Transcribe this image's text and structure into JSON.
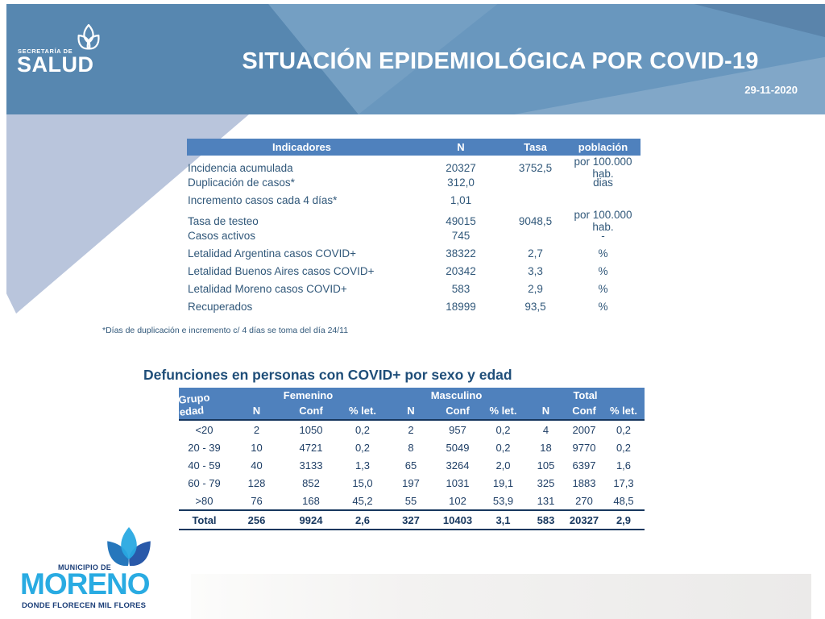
{
  "header": {
    "logo_small": "SECRETARÍA DE",
    "logo_big": "SALUD",
    "title": "SITUACIÓN EPIDEMIOLÓGICA POR COVID-19",
    "date": "29-11-2020"
  },
  "indicators_table": {
    "headers": {
      "indicator": "Indicadores",
      "n": "N",
      "tasa": "Tasa",
      "poblacion": "población"
    },
    "rows": [
      {
        "indicator": "Incidencia acumulada",
        "n": "20327",
        "tasa": "3752,5",
        "poblacion": "por 100.000 hab."
      },
      {
        "indicator": "Duplicación de casos*",
        "n": "312,0",
        "tasa": "",
        "poblacion": "dias"
      },
      {
        "indicator": "Incremento casos cada 4 días*",
        "n": "1,01",
        "tasa": "",
        "poblacion": ""
      },
      {
        "indicator": "Tasa de testeo",
        "n": "49015",
        "tasa": "9048,5",
        "poblacion": "por 100.000 hab."
      },
      {
        "indicator": "Casos activos",
        "n": "745",
        "tasa": "",
        "poblacion": "-"
      },
      {
        "indicator": "Letalidad Argentina casos COVID+",
        "n": "38322",
        "tasa": "2,7",
        "poblacion": "%"
      },
      {
        "indicator": "Letalidad Buenos Aires casos COVID+",
        "n": "20342",
        "tasa": "3,3",
        "poblacion": "%"
      },
      {
        "indicator": "Letalidad Moreno casos COVID+",
        "n": "583",
        "tasa": "2,9",
        "poblacion": "%"
      },
      {
        "indicator": "Recuperados",
        "n": "18999",
        "tasa": "93,5",
        "poblacion": "%"
      }
    ],
    "footnote": "*Días de duplicación e incremento c/ 4 días se toma del día 24/11"
  },
  "deaths_table": {
    "title": "Defunciones en personas con COVID+ por sexo y edad",
    "col_group_label": "Grupo edad",
    "groups": [
      "Femenino",
      "Masculino",
      "Total"
    ],
    "subheaders": [
      "N",
      "Conf",
      "% let."
    ],
    "rows": [
      [
        "<20",
        "2",
        "1050",
        "0,2",
        "2",
        "957",
        "0,2",
        "4",
        "2007",
        "0,2"
      ],
      [
        "20 - 39",
        "10",
        "4721",
        "0,2",
        "8",
        "5049",
        "0,2",
        "18",
        "9770",
        "0,2"
      ],
      [
        "40 - 59",
        "40",
        "3133",
        "1,3",
        "65",
        "3264",
        "2,0",
        "105",
        "6397",
        "1,6"
      ],
      [
        "60 - 79",
        "128",
        "852",
        "15,0",
        "197",
        "1031",
        "19,1",
        "325",
        "1883",
        "17,3"
      ],
      [
        ">80",
        "76",
        "168",
        "45,2",
        "55",
        "102",
        "53,9",
        "131",
        "270",
        "48,5"
      ],
      [
        "Total",
        "256",
        "9924",
        "2,6",
        "327",
        "10403",
        "3,1",
        "583",
        "20327",
        "2,9"
      ]
    ]
  },
  "footer_logo": {
    "small": "MUNICIPIO DE",
    "big": "MORENO",
    "tagline": "DONDE FLORECEN MIL FLORES"
  },
  "colors": {
    "banner_base": "#5e90ba",
    "wedge": "#b9c5dc",
    "table_header": "#4f81bd",
    "body_text": "#31587a",
    "navy_text": "#1f3f66",
    "title_navy": "#1f4e79",
    "moreno_light_blue": "#29abe2",
    "moreno_dark_blue": "#1b3e78"
  }
}
